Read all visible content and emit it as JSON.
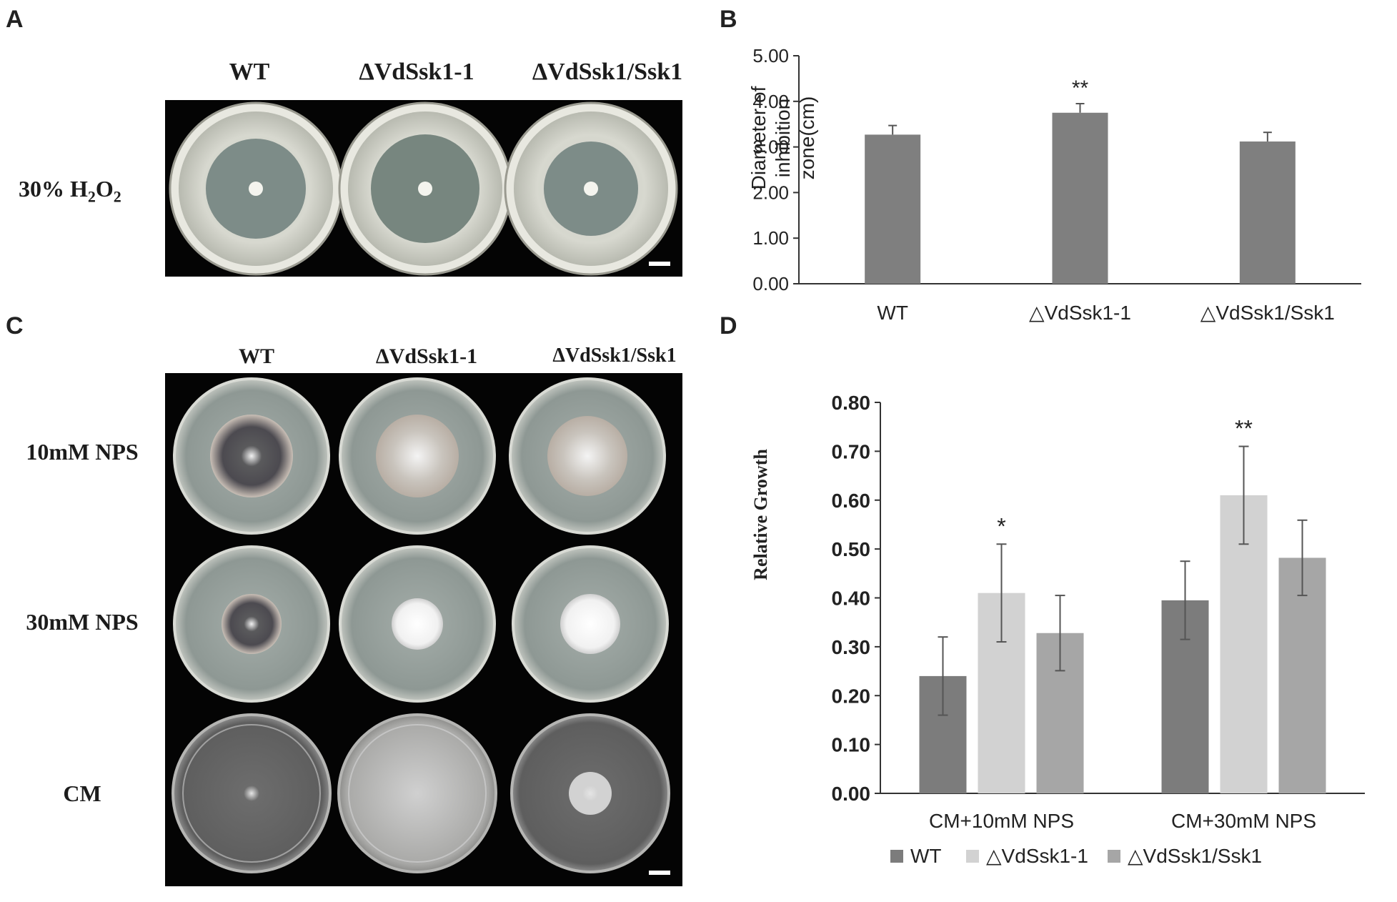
{
  "panels": {
    "a": "A",
    "b": "B",
    "c": "C",
    "d": "D"
  },
  "panel_a": {
    "columns": [
      "WT",
      "ΔVdSsk1-1",
      "ΔVdSsk1/Ssk1"
    ],
    "row_label_main": "30% H",
    "row_label_sub1": "2",
    "row_label_mid": "O",
    "row_label_sub2": "2"
  },
  "panel_c": {
    "columns": [
      "WT",
      "ΔVdSsk1-1",
      "ΔVdSsk1/Ssk1"
    ],
    "rows": [
      "10mM NPS",
      "30mM NPS",
      "CM"
    ]
  },
  "chart_data": [
    {
      "panel": "B",
      "type": "bar",
      "categories": [
        "WT",
        "△VdSsk1-1",
        "△VdSsk1/Ssk1"
      ],
      "values": [
        3.27,
        3.75,
        3.12
      ],
      "errors": [
        0.2,
        0.2,
        0.2
      ],
      "significance": [
        "",
        "**",
        ""
      ],
      "ylabel_line1": "Diameter of",
      "ylabel_line2": "inhibition zone(cm)",
      "ylim": [
        0,
        5
      ],
      "yticks": [
        "0.00",
        "1.00",
        "2.00",
        "3.00",
        "4.00",
        "5.00"
      ],
      "bar_color": "#7f7f7f",
      "grid": false
    },
    {
      "panel": "D",
      "type": "bar",
      "categories": [
        "CM+10mM NPS",
        "CM+30mM NPS"
      ],
      "series": [
        {
          "name": "WT",
          "values": [
            0.24,
            0.395
          ],
          "errors": [
            0.08,
            0.08
          ],
          "color": "#7c7c7c"
        },
        {
          "name": "△VdSsk1-1",
          "values": [
            0.41,
            0.61
          ],
          "errors": [
            0.1,
            0.1
          ],
          "color": "#d2d2d2"
        },
        {
          "name": "△VdSsk1/Ssk1",
          "values": [
            0.328,
            0.482
          ],
          "errors": [
            0.077,
            0.077
          ],
          "color": "#a6a6a6"
        }
      ],
      "significance": [
        [
          "",
          "*",
          ""
        ],
        [
          "",
          "**",
          ""
        ]
      ],
      "ylabel": "Relative Growth",
      "ylim": [
        0,
        0.8
      ],
      "yticks": [
        "0.00",
        "0.10",
        "0.20",
        "0.30",
        "0.40",
        "0.50",
        "0.60",
        "0.70",
        "0.80"
      ],
      "legend_position": "bottom",
      "grid": false
    }
  ]
}
